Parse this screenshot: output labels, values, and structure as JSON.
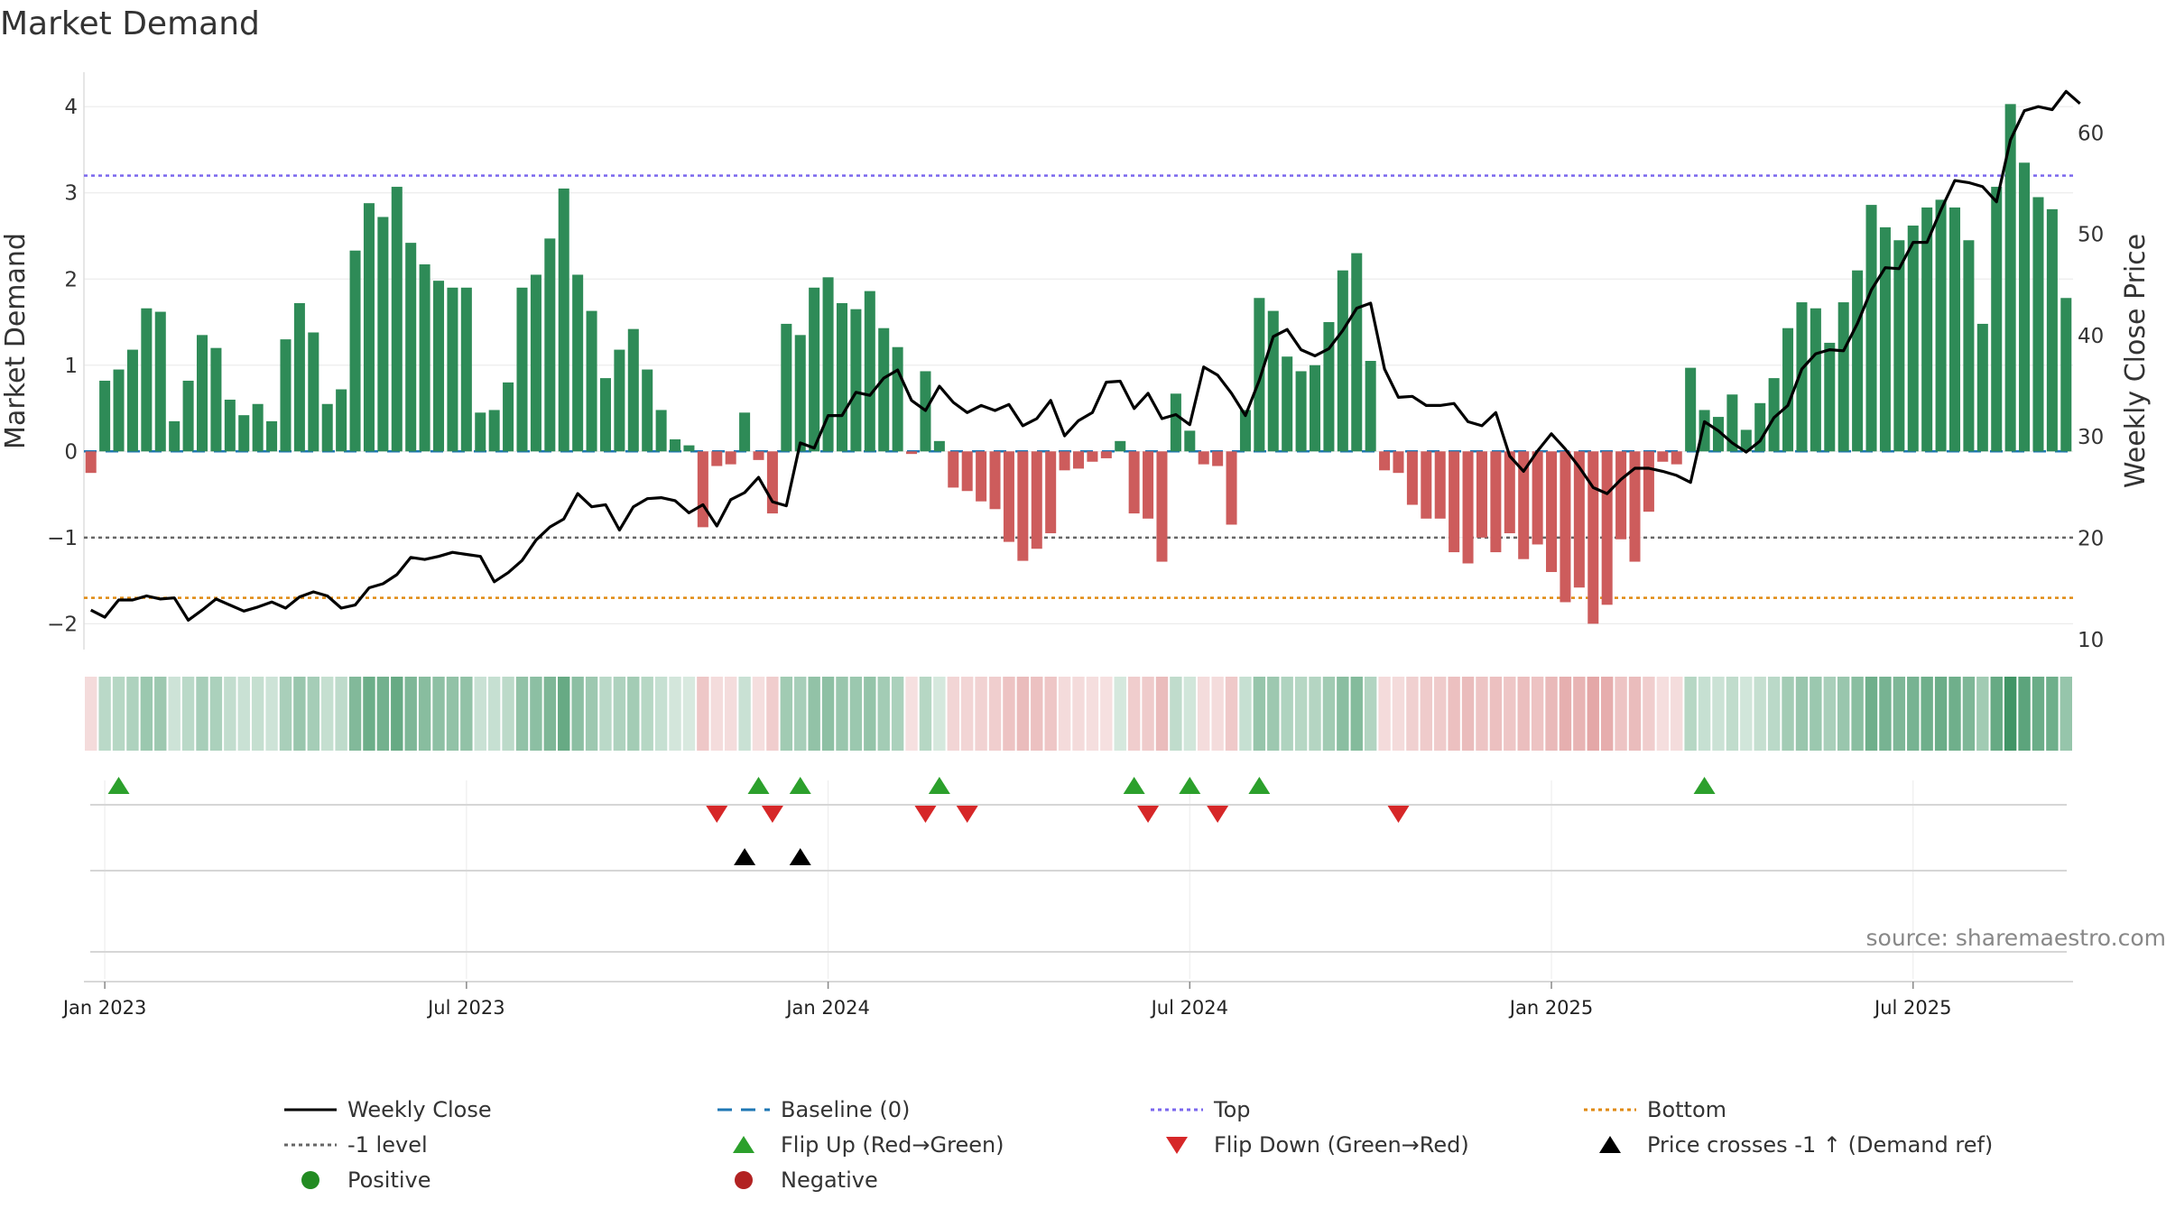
{
  "chart_data": {
    "type": "bar",
    "title": "Market Demand",
    "ylabel": "Market Demand",
    "y2label": "Weekly Close Price",
    "ylim": [
      -2.3,
      4.4
    ],
    "y2lim": [
      9,
      66
    ],
    "yticks": [
      {
        "v": 4,
        "label": "4"
      },
      {
        "v": 3,
        "label": "3"
      },
      {
        "v": 2,
        "label": "2"
      },
      {
        "v": 1,
        "label": "1"
      },
      {
        "v": 0,
        "label": "0"
      },
      {
        "v": -1,
        "label": "−1"
      },
      {
        "v": -2,
        "label": "−2"
      }
    ],
    "y2ticks": [
      {
        "v": 60,
        "label": "60"
      },
      {
        "v": 50,
        "label": "50"
      },
      {
        "v": 40,
        "label": "40"
      },
      {
        "v": 30,
        "label": "30"
      },
      {
        "v": 20,
        "label": "20"
      },
      {
        "v": 10,
        "label": "10"
      }
    ],
    "xticks": [
      {
        "i": 1,
        "label": "Jan 2023"
      },
      {
        "i": 27,
        "label": "Jul 2023"
      },
      {
        "i": 53,
        "label": "Jan 2024"
      },
      {
        "i": 79,
        "label": "Jul 2024"
      },
      {
        "i": 105,
        "label": "Jan 2025"
      },
      {
        "i": 131,
        "label": "Jul 2025"
      }
    ],
    "top_level": 3.2,
    "minus_one_level": -1,
    "bottom_level": -1.7,
    "colors": {
      "positive": "#2e8b57",
      "negative": "#cd5c5c",
      "top": "#7b68ee",
      "bottom": "#e08a10",
      "minus_one": "#666666",
      "baseline": "#1f77b4",
      "price": "#000000",
      "flip_up": "#2ca02c",
      "flip_down": "#d62728",
      "cross": "#000000",
      "positive_dot": "#228b22",
      "negative_dot": "#b22222"
    },
    "demand": [
      -0.25,
      0.82,
      0.95,
      1.18,
      1.66,
      1.62,
      0.35,
      0.82,
      1.35,
      1.2,
      0.6,
      0.42,
      0.55,
      0.35,
      1.3,
      1.72,
      1.38,
      0.55,
      0.72,
      2.33,
      2.88,
      2.72,
      3.07,
      2.42,
      2.17,
      1.98,
      1.9,
      1.9,
      0.45,
      0.48,
      0.8,
      1.9,
      2.05,
      2.47,
      3.05,
      2.05,
      1.63,
      0.85,
      1.18,
      1.42,
      0.95,
      0.48,
      0.14,
      0.07,
      -0.88,
      -0.17,
      -0.15,
      0.45,
      -0.1,
      -0.72,
      1.48,
      1.35,
      1.9,
      2.02,
      1.72,
      1.65,
      1.86,
      1.43,
      1.21,
      -0.03,
      0.93,
      0.12,
      -0.42,
      -0.46,
      -0.58,
      -0.67,
      -1.05,
      -1.27,
      -1.13,
      -0.95,
      -0.22,
      -0.2,
      -0.12,
      -0.08,
      0.12,
      -0.72,
      -0.78,
      -1.28,
      0.67,
      0.24,
      -0.15,
      -0.17,
      -0.85,
      0.48,
      1.78,
      1.63,
      1.1,
      0.93,
      1.0,
      1.5,
      2.1,
      2.3,
      1.05,
      -0.22,
      -0.25,
      -0.62,
      -0.78,
      -0.78,
      -1.17,
      -1.3,
      -1.0,
      -1.17,
      -0.95,
      -1.25,
      -1.08,
      -1.4,
      -1.75,
      -1.58,
      -2.0,
      -1.78,
      -1.02,
      -1.28,
      -0.7,
      -0.12,
      -0.15,
      0.97,
      0.48,
      0.4,
      0.66,
      0.25,
      0.56,
      0.85,
      1.43,
      1.73,
      1.66,
      1.26,
      1.73,
      2.1,
      2.86,
      2.6,
      2.45,
      2.62,
      2.83,
      2.92,
      2.83,
      2.45,
      1.48,
      3.07,
      4.03,
      3.35,
      2.95,
      2.81,
      1.78
    ],
    "price": [
      12.9,
      12.2,
      13.9,
      13.9,
      14.3,
      14.0,
      14.1,
      11.9,
      12.9,
      14.0,
      13.4,
      12.8,
      13.2,
      13.7,
      13.1,
      14.2,
      14.7,
      14.3,
      13.1,
      13.4,
      15.1,
      15.5,
      16.4,
      18.1,
      17.9,
      18.2,
      18.6,
      18.4,
      18.2,
      15.7,
      16.6,
      17.8,
      19.8,
      21.1,
      21.9,
      24.4,
      23.1,
      23.3,
      20.8,
      23.1,
      23.9,
      24.0,
      23.7,
      22.5,
      23.3,
      21.2,
      23.8,
      24.5,
      26.0,
      23.6,
      23.2,
      29.4,
      28.9,
      32.1,
      32.1,
      34.4,
      34.1,
      35.8,
      36.6,
      33.6,
      32.6,
      35.0,
      33.4,
      32.4,
      33.1,
      32.6,
      33.2,
      31.1,
      31.8,
      33.6,
      30.1,
      31.6,
      32.4,
      35.4,
      35.5,
      32.8,
      34.3,
      31.8,
      32.2,
      31.2,
      36.9,
      36.1,
      34.3,
      32.1,
      35.6,
      39.9,
      40.6,
      38.6,
      38.0,
      38.7,
      40.5,
      42.7,
      43.2,
      36.7,
      33.9,
      34.0,
      33.1,
      33.1,
      33.3,
      31.5,
      31.1,
      32.4,
      28.1,
      26.6,
      28.6,
      30.3,
      28.8,
      27.0,
      25.0,
      24.4,
      25.8,
      26.9,
      26.9,
      26.6,
      26.2,
      25.5,
      31.5,
      30.6,
      29.4,
      28.5,
      29.6,
      31.9,
      33.1,
      36.7,
      38.2,
      38.6,
      38.5,
      41.2,
      44.5,
      46.7,
      46.6,
      49.2,
      49.2,
      52.4,
      55.3,
      55.1,
      54.7,
      53.2,
      59.3,
      62.2,
      62.6,
      62.3,
      64.1,
      62.9
    ],
    "flip_up": [
      2,
      48,
      51,
      61,
      75,
      79,
      84,
      116
    ],
    "flip_down": [
      45,
      49,
      60,
      63,
      76,
      81,
      94
    ],
    "price_cross": [
      47,
      51
    ],
    "source": "source: sharemaestro.com",
    "legend": [
      {
        "label": "Weekly Close",
        "key": "price_line"
      },
      {
        "label": "Baseline (0)",
        "key": "baseline"
      },
      {
        "label": "Top",
        "key": "top"
      },
      {
        "label": "Bottom",
        "key": "bottom"
      },
      {
        "label": "-1 level",
        "key": "minus_one"
      },
      {
        "label": "Flip Up (Red→Green)",
        "key": "flip_up"
      },
      {
        "label": "Flip Down (Green→Red)",
        "key": "flip_down"
      },
      {
        "label": "Price crosses -1 ↑ (Demand ref)",
        "key": "price_cross"
      },
      {
        "label": "Positive",
        "key": "positive_dot"
      },
      {
        "label": "Negative",
        "key": "negative_dot"
      }
    ]
  }
}
